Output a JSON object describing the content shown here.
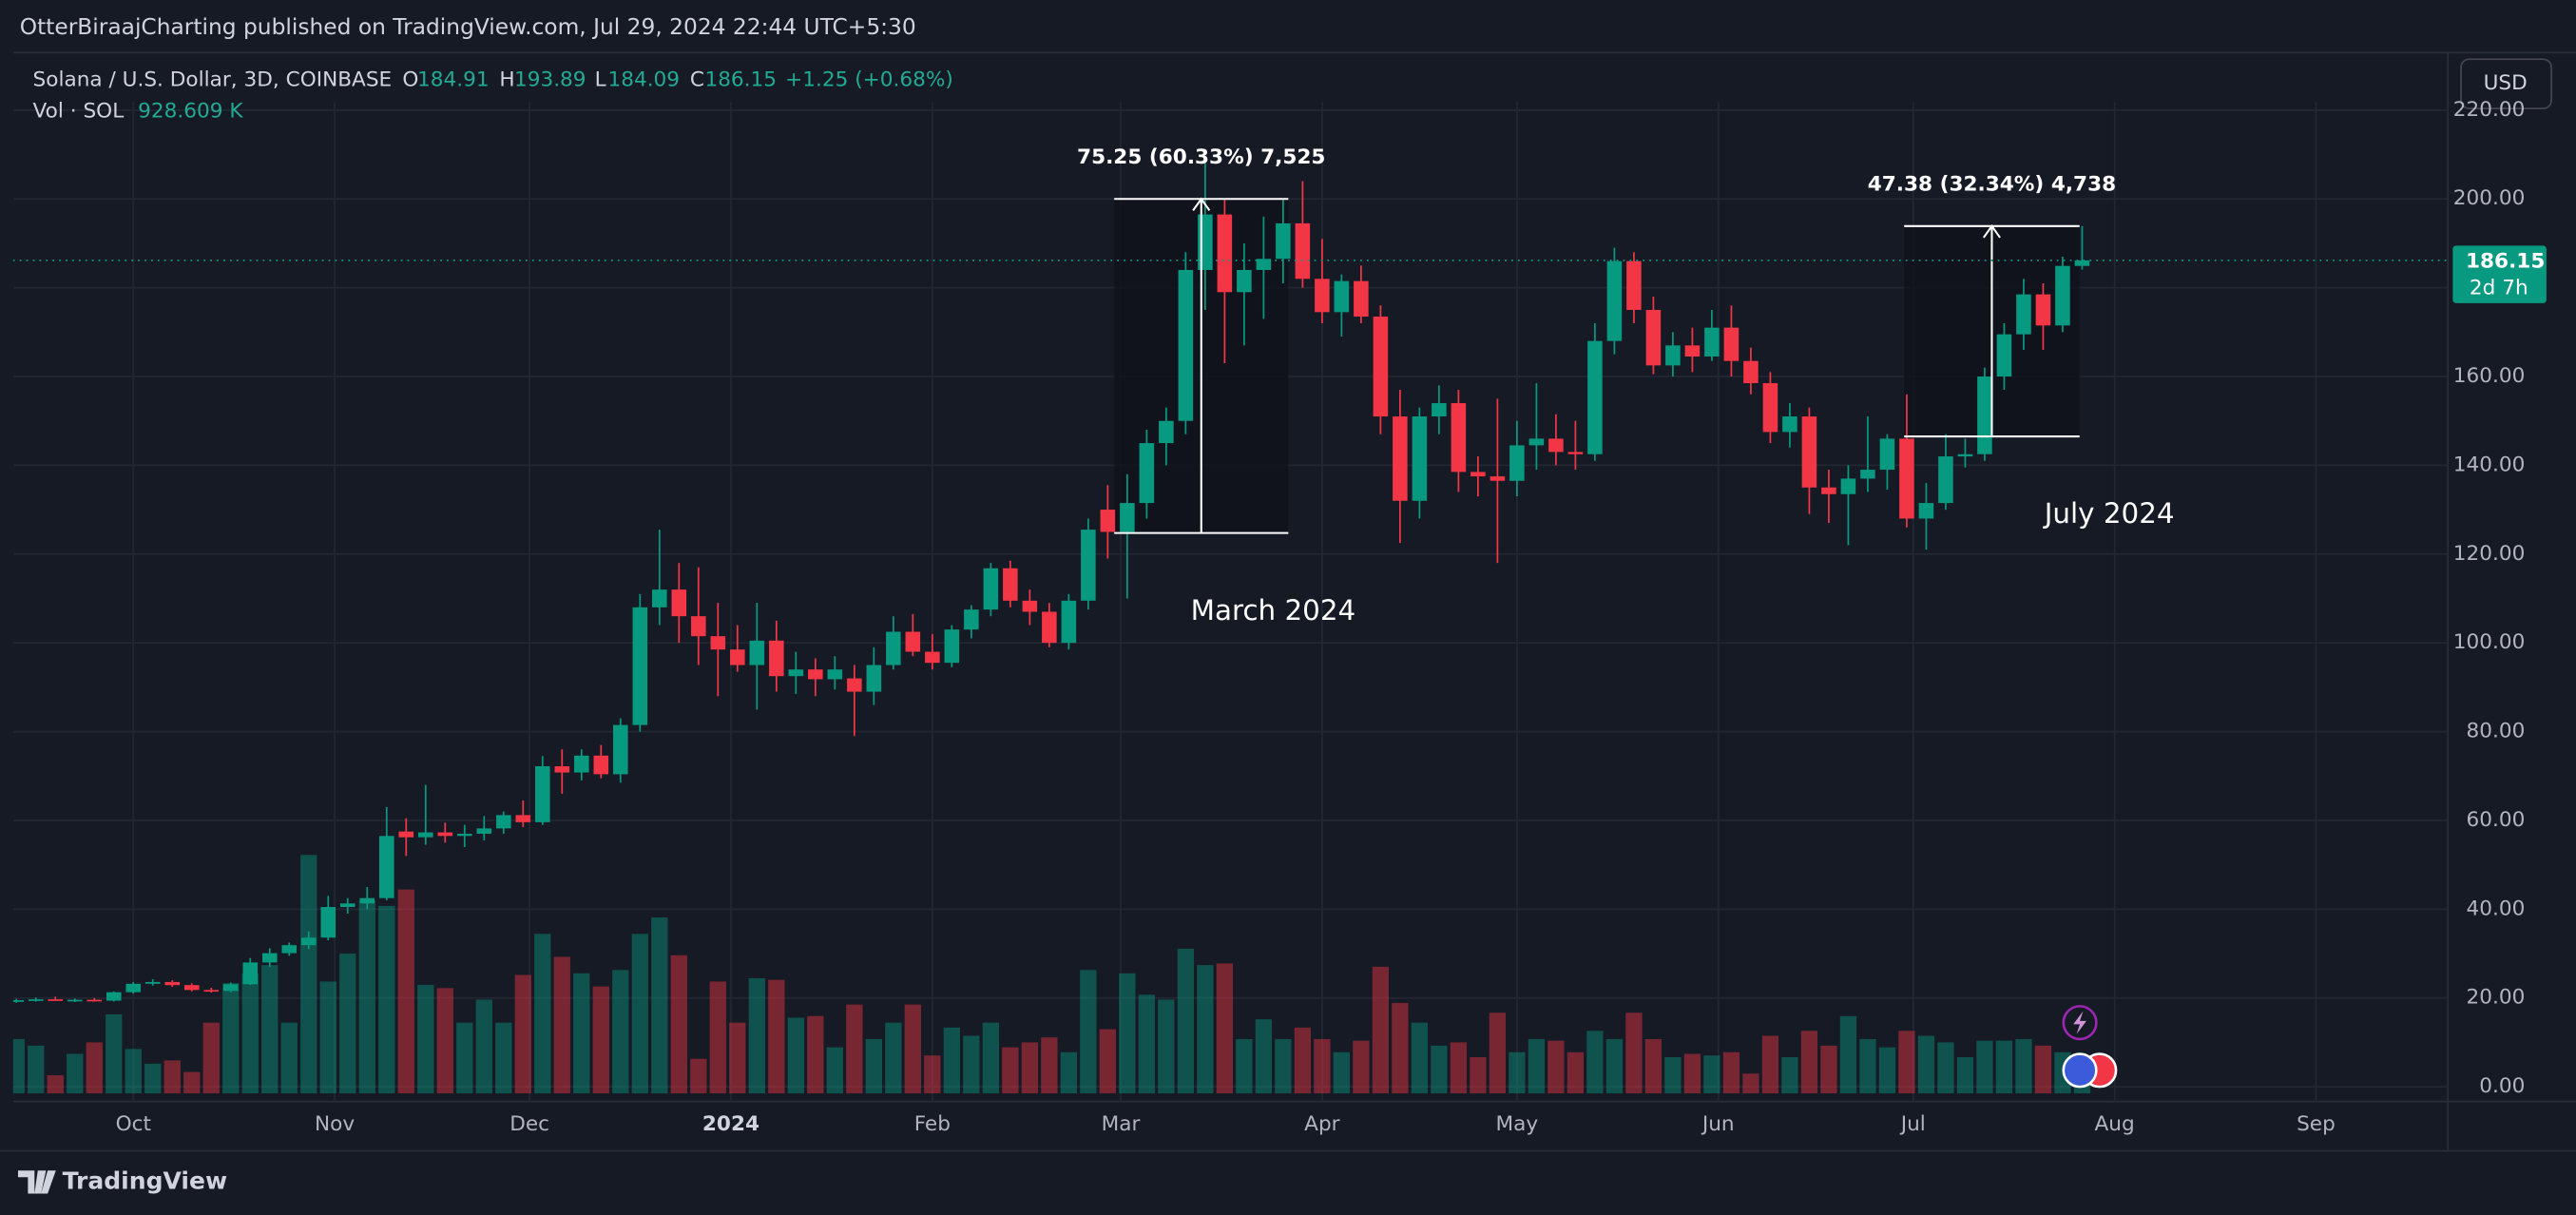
{
  "header": {
    "publisher": "OtterBiraajCharting published on TradingView.com, Jul 29, 2024 22:44 UTC+5:30"
  },
  "footer": {
    "brand": "TradingView"
  },
  "chart_data": {
    "type": "candlestick",
    "title": "Solana / U.S. Dollar, 3D, COINBASE",
    "ohlc_prefixes": [
      "O",
      "H",
      "L",
      "C"
    ],
    "change": "+1.25 (+0.68%)",
    "volume_title": "Vol · SOL",
    "volume_label": "928.609 K",
    "currency": "USD",
    "countdown": "2d 7h",
    "up_color": "#089981",
    "down_color": "#f23645",
    "grid": true,
    "x": [
      -18,
      -15,
      -12,
      -9,
      -6,
      -3,
      0,
      3,
      6,
      9,
      12,
      15,
      18,
      21,
      24,
      27,
      30,
      33,
      36,
      39,
      42,
      45,
      48,
      51,
      54,
      57,
      60,
      63,
      66,
      69,
      72,
      75,
      78,
      81,
      84,
      87,
      90,
      93,
      96,
      99,
      102,
      105,
      108,
      111,
      114,
      117,
      120,
      123,
      126,
      129,
      132,
      135,
      138,
      141,
      144,
      147,
      150,
      153,
      156,
      159,
      162,
      165,
      168,
      171,
      174,
      177,
      180,
      183,
      186,
      189,
      192,
      195,
      198,
      201,
      204,
      207,
      210,
      213,
      216,
      219,
      222,
      225,
      228,
      231,
      234,
      237,
      240,
      243,
      246,
      249,
      252,
      255,
      258,
      261,
      264,
      267,
      270,
      273,
      276,
      279,
      282,
      285,
      288,
      291,
      294,
      297,
      300
    ],
    "open": [
      19.2,
      19.5,
      19.7,
      19.4,
      19.6,
      19.4,
      21.3,
      23.2,
      23.6,
      22.9,
      21.8,
      21.6,
      23.1,
      28.0,
      30.1,
      31.9,
      33.6,
      40.5,
      41.3,
      42.5,
      57.5,
      56.2,
      57.3,
      56.5,
      57.0,
      58.2,
      61.2,
      59.6,
      72.2,
      70.8,
      74.6,
      70.4,
      81.5,
      108.0,
      112.0,
      106.0,
      101.5,
      98.5,
      95.0,
      100.5,
      92.5,
      94.0,
      91.8,
      92.0,
      89.0,
      95.0,
      102.5,
      98.0,
      95.5,
      103.0,
      107.5,
      116.8,
      109.5,
      107.0,
      100.0,
      109.5,
      130.0,
      125.0,
      131.5,
      145.0,
      150.0,
      184.0,
      196.5,
      179.0,
      184.0,
      186.5,
      194.5,
      182.0,
      174.5,
      181.5,
      173.5,
      151.0,
      132.0,
      151.0,
      154.0,
      138.5,
      137.5,
      136.5,
      144.5,
      146.0,
      143.0,
      142.5,
      168.0,
      186.0,
      175.0,
      162.5,
      167.0,
      164.5,
      171.0,
      163.5,
      158.5,
      147.5,
      151.0,
      135.0,
      133.5,
      137.0,
      139.0,
      146.0,
      128.0,
      131.5,
      142.0,
      142.5,
      160.0,
      169.5,
      178.5,
      171.5,
      184.91
    ],
    "high": [
      19.8,
      20.1,
      20.3,
      19.9,
      20.0,
      21.5,
      23.6,
      24.2,
      24.0,
      23.3,
      22.3,
      23.5,
      29.0,
      31.2,
      32.5,
      35.0,
      43.0,
      42.5,
      45.0,
      63.0,
      60.5,
      68.0,
      59.5,
      59.0,
      61.0,
      62.0,
      64.5,
      74.5,
      76.0,
      76.0,
      77.0,
      83.0,
      111.0,
      125.5,
      118.0,
      117.0,
      109.0,
      104.0,
      109.0,
      105.0,
      98.0,
      96.5,
      97.0,
      95.0,
      99.0,
      106.0,
      106.5,
      102.0,
      104.0,
      108.5,
      118.0,
      118.5,
      112.0,
      109.0,
      111.0,
      128.0,
      135.5,
      138.0,
      148.0,
      153.0,
      188.0,
      209.0,
      200.0,
      190.0,
      196.0,
      200.0,
      204.0,
      191.0,
      183.0,
      185.0,
      176.0,
      157.0,
      153.0,
      158.0,
      157.0,
      142.0,
      155.0,
      150.0,
      158.5,
      151.5,
      150.0,
      172.0,
      189.0,
      188.0,
      178.0,
      170.0,
      171.0,
      175.0,
      176.0,
      166.5,
      161.0,
      154.0,
      153.0,
      139.0,
      140.0,
      151.0,
      147.0,
      156.0,
      136.0,
      147.0,
      146.0,
      162.0,
      172.0,
      182.0,
      181.0,
      187.0,
      193.89
    ],
    "low": [
      18.9,
      19.2,
      19.3,
      19.1,
      19.2,
      19.2,
      21.0,
      22.8,
      22.5,
      21.5,
      21.2,
      21.3,
      22.9,
      27.0,
      29.5,
      31.0,
      33.0,
      39.0,
      40.0,
      42.0,
      52.0,
      54.5,
      55.0,
      54.0,
      55.5,
      57.0,
      58.5,
      59.0,
      66.0,
      69.0,
      69.5,
      68.5,
      80.0,
      104.0,
      100.0,
      95.0,
      88.0,
      93.5,
      85.0,
      89.0,
      88.5,
      88.0,
      89.5,
      79.0,
      86.0,
      94.0,
      97.0,
      94.0,
      94.5,
      101.0,
      106.0,
      108.0,
      104.0,
      99.0,
      98.5,
      107.5,
      119.0,
      110.0,
      128.0,
      140.0,
      147.0,
      175.0,
      163.0,
      167.0,
      173.0,
      181.0,
      180.0,
      172.0,
      169.0,
      172.0,
      147.0,
      122.5,
      128.0,
      147.0,
      134.0,
      133.0,
      118.0,
      133.0,
      139.0,
      140.0,
      139.0,
      141.0,
      165.0,
      172.0,
      160.5,
      160.0,
      161.0,
      163.5,
      160.0,
      156.0,
      145.0,
      144.0,
      129.0,
      127.0,
      122.0,
      134.0,
      134.5,
      126.0,
      121.0,
      130.0,
      139.5,
      141.0,
      157.0,
      166.0,
      166.0,
      170.0,
      184.09
    ],
    "close": [
      19.5,
      19.7,
      19.4,
      19.6,
      19.4,
      21.3,
      23.2,
      23.6,
      22.9,
      21.8,
      21.6,
      23.1,
      28.0,
      30.1,
      31.9,
      33.6,
      40.5,
      41.3,
      42.5,
      56.5,
      56.2,
      57.3,
      56.5,
      57.0,
      58.2,
      61.2,
      59.6,
      72.2,
      70.8,
      74.6,
      70.4,
      81.5,
      108.0,
      112.0,
      106.0,
      101.5,
      98.5,
      95.0,
      100.5,
      92.5,
      94.0,
      91.8,
      94.0,
      89.0,
      95.0,
      102.5,
      98.0,
      95.5,
      103.0,
      107.5,
      116.8,
      109.5,
      107.0,
      100.0,
      109.5,
      125.5,
      125.0,
      131.5,
      145.0,
      150.0,
      184.0,
      196.5,
      179.0,
      184.0,
      186.5,
      194.5,
      182.0,
      174.5,
      181.5,
      173.5,
      151.0,
      132.0,
      151.0,
      154.0,
      138.5,
      137.5,
      136.5,
      144.5,
      146.0,
      143.0,
      142.5,
      168.0,
      186.0,
      175.0,
      162.5,
      167.0,
      164.5,
      171.0,
      163.5,
      158.5,
      147.5,
      151.0,
      135.0,
      133.5,
      137.0,
      139.0,
      146.0,
      128.0,
      131.5,
      142.0,
      142.5,
      160.0,
      169.5,
      178.5,
      171.5,
      184.91,
      186.15
    ],
    "volume": [
      3300,
      2900,
      1100,
      2400,
      3100,
      4800,
      2700,
      1800,
      2000,
      1300,
      4300,
      6700,
      7300,
      7800,
      4300,
      14500,
      6800,
      8500,
      11700,
      11400,
      12400,
      6600,
      6400,
      4300,
      5700,
      4300,
      7200,
      9700,
      8300,
      7300,
      6500,
      7500,
      9700,
      10700,
      8400,
      2100,
      6800,
      4300,
      7000,
      6900,
      4600,
      4700,
      2800,
      5400,
      3300,
      4300,
      5400,
      2300,
      4000,
      3500,
      4300,
      2800,
      3100,
      3400,
      2500,
      7500,
      3900,
      7300,
      6000,
      5700,
      8800,
      7800,
      7900,
      3300,
      4500,
      3300,
      4000,
      3300,
      2500,
      3200,
      7700,
      5500,
      4300,
      2900,
      3100,
      2200,
      4900,
      2500,
      3300,
      3200,
      2500,
      3800,
      3300,
      4900,
      3300,
      2200,
      2400,
      2300,
      2500,
      1200,
      3500,
      2200,
      3800,
      2900,
      4700,
      3300,
      2800,
      3800,
      3500,
      3100,
      2200,
      3200,
      3200,
      3300,
      2900,
      2500,
      928.609
    ],
    "xlim": [
      -18.5,
      356.3
    ],
    "xticks": [
      {
        "value": 0,
        "label": "Oct"
      },
      {
        "value": 31,
        "label": "Nov"
      },
      {
        "value": 61,
        "label": "Dec"
      },
      {
        "value": 92,
        "label": "2024"
      },
      {
        "value": 123,
        "label": "Feb"
      },
      {
        "value": 152,
        "label": "Mar"
      },
      {
        "value": 183,
        "label": "Apr"
      },
      {
        "value": 213,
        "label": "May"
      },
      {
        "value": 244,
        "label": "Jun"
      },
      {
        "value": 274,
        "label": "Jul"
      },
      {
        "value": 305,
        "label": "Aug"
      },
      {
        "value": 336,
        "label": "Sep"
      }
    ],
    "ylim": [
      -3.33,
      221.85
    ],
    "yticks": [
      {
        "value": 0,
        "label": "0.00"
      },
      {
        "value": 20,
        "label": "20.00"
      },
      {
        "value": 40,
        "label": "40.00"
      },
      {
        "value": 60,
        "label": "60.00"
      },
      {
        "value": 80,
        "label": "80.00"
      },
      {
        "value": 100,
        "label": "100.00"
      },
      {
        "value": 120,
        "label": "120.00"
      },
      {
        "value": 140,
        "label": "140.00"
      },
      {
        "value": 160,
        "label": "160.00"
      },
      {
        "value": 180,
        "label": "180.00"
      },
      {
        "value": 200,
        "label": "200.00"
      },
      {
        "value": 220,
        "label": "220.00"
      }
    ],
    "annotations": [
      {
        "label": "75.25 (60.33%) 7,525",
        "from": 124.75,
        "to": 200,
        "x": [
          151,
          177.8
        ]
      },
      {
        "label": "47.38 (32.34%) 4,738",
        "from": 146.5,
        "to": 193.88,
        "x": [
          272.6,
          299.6
        ]
      }
    ],
    "notes": [
      "March 2024",
      "July 2024"
    ]
  }
}
